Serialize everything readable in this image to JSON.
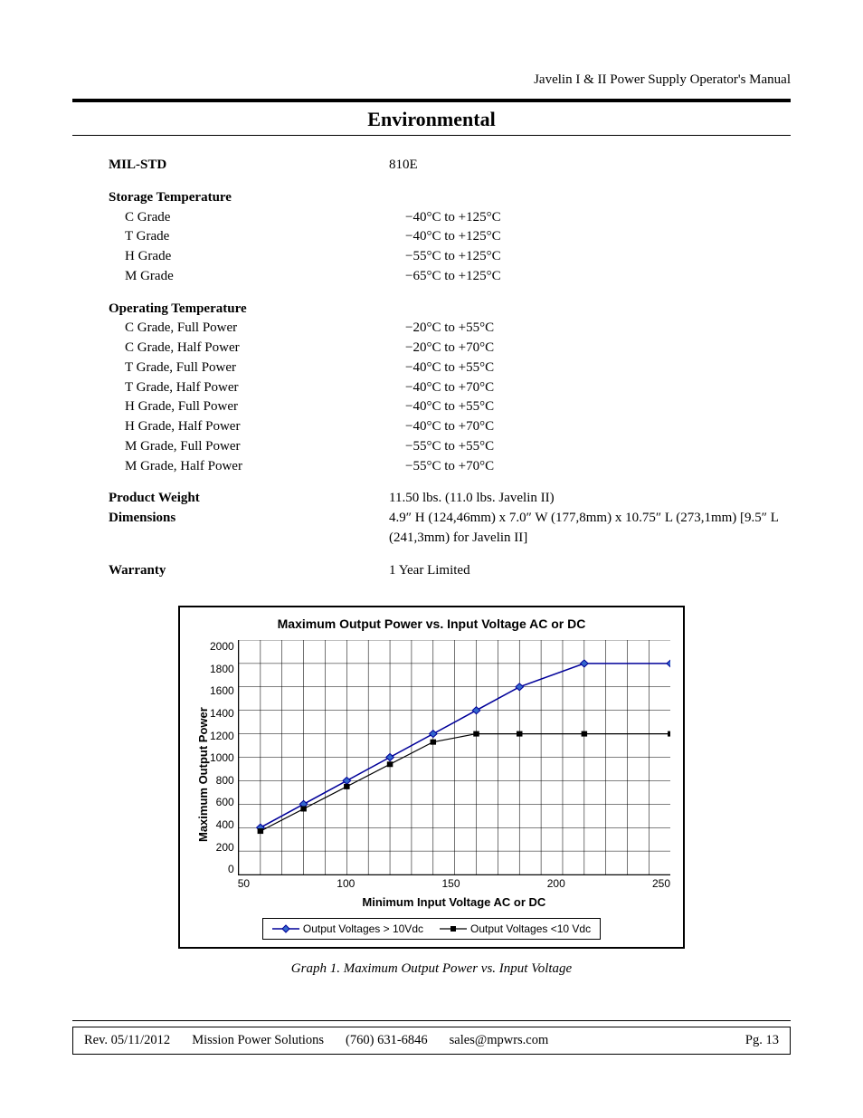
{
  "header": {
    "running_title": "Javelin I & II Power Supply Operator's Manual",
    "section_title": "Environmental"
  },
  "specs": {
    "mil_std": {
      "label": "MIL-STD",
      "value": "810E"
    },
    "storage_temp": {
      "label": "Storage Temperature",
      "rows": [
        {
          "label": "C Grade",
          "value": "−40°C to +125°C"
        },
        {
          "label": "T Grade",
          "value": "−40°C to +125°C"
        },
        {
          "label": "H Grade",
          "value": "−55°C to +125°C"
        },
        {
          "label": "M Grade",
          "value": "−65°C to +125°C"
        }
      ]
    },
    "operating_temp": {
      "label": "Operating Temperature",
      "rows": [
        {
          "label": "C Grade, Full Power",
          "value": "−20°C to +55°C"
        },
        {
          "label": "C Grade, Half Power",
          "value": "−20°C to +70°C"
        },
        {
          "label": "T Grade, Full Power",
          "value": "−40°C to +55°C"
        },
        {
          "label": "T Grade, Half Power",
          "value": "−40°C to +70°C"
        },
        {
          "label": "H Grade, Full Power",
          "value": "−40°C to +55°C"
        },
        {
          "label": "H Grade, Half Power",
          "value": "−40°C to +70°C"
        },
        {
          "label": "M Grade, Full Power",
          "value": "−55°C to +55°C"
        },
        {
          "label": "M Grade, Half Power",
          "value": "−55°C to +70°C"
        }
      ]
    },
    "weight": {
      "label": "Product Weight",
      "value": "11.50 lbs. (11.0 lbs. Javelin II)"
    },
    "dimensions": {
      "label": "Dimensions",
      "value": "4.9″ H (124,46mm) x 7.0″ W (177,8mm) x 10.75″ L (273,1mm) [9.5″ L (241,3mm) for Javelin II]"
    },
    "warranty": {
      "label": "Warranty",
      "value": "1 Year Limited"
    }
  },
  "chart": {
    "type": "line",
    "title": "Maximum Output Power vs. Input Voltage AC or DC",
    "x_axis_label": "Minimum Input Voltage AC or DC",
    "y_axis_label": "Maximum Output Power",
    "xlim": [
      50,
      250
    ],
    "ylim": [
      0,
      2000
    ],
    "x_ticks": [
      50,
      100,
      150,
      200,
      250
    ],
    "y_ticks": [
      0,
      200,
      400,
      600,
      800,
      1000,
      1200,
      1400,
      1600,
      1800,
      2000
    ],
    "x_minor_step": 10,
    "y_minor_step": 200,
    "grid_color": "#000000",
    "grid_width": 0.5,
    "background_color": "#ffffff",
    "series": [
      {
        "name": "Output Voltages > 10Vdc",
        "color": "#000099",
        "marker": "diamond",
        "marker_fill": "#3366cc",
        "marker_size": 8,
        "line_width": 1.5,
        "points": [
          {
            "x": 60,
            "y": 400
          },
          {
            "x": 80,
            "y": 600
          },
          {
            "x": 100,
            "y": 800
          },
          {
            "x": 120,
            "y": 1000
          },
          {
            "x": 140,
            "y": 1200
          },
          {
            "x": 160,
            "y": 1400
          },
          {
            "x": 180,
            "y": 1600
          },
          {
            "x": 210,
            "y": 1800
          },
          {
            "x": 250,
            "y": 1800
          }
        ]
      },
      {
        "name": "Output Voltages <10 Vdc",
        "color": "#000000",
        "marker": "square",
        "marker_fill": "#000000",
        "marker_size": 6,
        "line_width": 1.2,
        "points": [
          {
            "x": 60,
            "y": 370
          },
          {
            "x": 80,
            "y": 560
          },
          {
            "x": 100,
            "y": 750
          },
          {
            "x": 120,
            "y": 940
          },
          {
            "x": 140,
            "y": 1130
          },
          {
            "x": 160,
            "y": 1200
          },
          {
            "x": 180,
            "y": 1200
          },
          {
            "x": 210,
            "y": 1200
          },
          {
            "x": 250,
            "y": 1200
          }
        ]
      }
    ],
    "caption": "Graph 1. Maximum Output Power vs. Input Voltage"
  },
  "footer": {
    "rev": "Rev. 05/11/2012",
    "company": "Mission Power Solutions",
    "phone": "(760) 631-6846",
    "email": "sales@mpwrs.com",
    "page": "Pg. 13"
  }
}
